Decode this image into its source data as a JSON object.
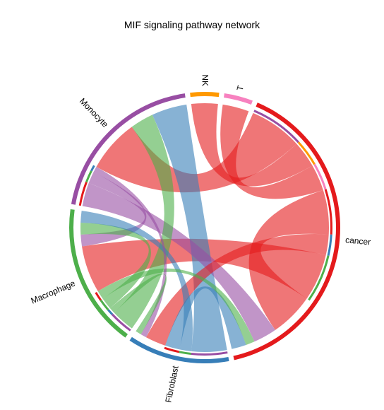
{
  "title": "MIF signaling pathway network",
  "chart_data": {
    "type": "chord",
    "title": "MIF signaling pathway network",
    "groups": [
      {
        "name": "Monocyte",
        "color": "#984EA3"
      },
      {
        "name": "NK",
        "color": "#FF9900"
      },
      {
        "name": "T",
        "color": "#F781BF"
      },
      {
        "name": "cancer",
        "color": "#E41A1C"
      },
      {
        "name": "Fibroblast",
        "color": "#377EB8"
      },
      {
        "name": "Macrophage",
        "color": "#4DAF4A"
      }
    ],
    "links": [
      {
        "source": "cancer",
        "target": "Monocyte",
        "value": 0.09
      },
      {
        "source": "cancer",
        "target": "NK",
        "value": 0.045
      },
      {
        "source": "cancer",
        "target": "T",
        "value": 0.045
      },
      {
        "source": "cancer",
        "target": "cancer",
        "value": 0.075
      },
      {
        "source": "cancer",
        "target": "Fibroblast",
        "value": 0.035
      },
      {
        "source": "cancer",
        "target": "Macrophage",
        "value": 0.08
      },
      {
        "source": "Monocyte",
        "target": "cancer",
        "value": 0.04
      },
      {
        "source": "Monocyte",
        "target": "Macrophage",
        "value": 0.02
      },
      {
        "source": "Monocyte",
        "target": "Fibroblast",
        "value": 0.01
      },
      {
        "source": "Macrophage",
        "target": "Monocyte",
        "value": 0.04
      },
      {
        "source": "Macrophage",
        "target": "Fibroblast",
        "value": 0.01
      },
      {
        "source": "Macrophage",
        "target": "Macrophage",
        "value": 0.02
      },
      {
        "source": "Macrophage",
        "target": "cancer",
        "value": 0.015
      },
      {
        "source": "Fibroblast",
        "target": "Monocyte",
        "value": 0.06
      },
      {
        "source": "Fibroblast",
        "target": "Macrophage",
        "value": 0.02
      },
      {
        "source": "Fibroblast",
        "target": "cancer",
        "value": 0.025
      }
    ],
    "legend": "none",
    "grid": false
  }
}
